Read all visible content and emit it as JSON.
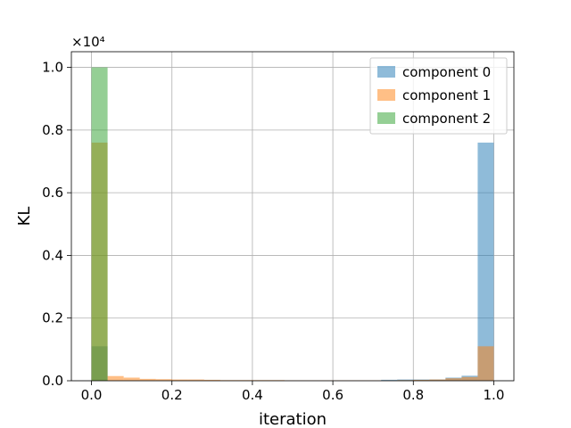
{
  "chart_data": {
    "type": "histogram",
    "title": "",
    "xlabel": "iteration",
    "ylabel": "KL",
    "xlim": [
      -0.05,
      1.05
    ],
    "ylim": [
      0,
      1.05
    ],
    "y_offset_text": "×10⁴",
    "bins": 25,
    "bin_range": [
      0.0,
      1.0
    ],
    "x_ticks": [
      0.0,
      0.2,
      0.4,
      0.6,
      0.8,
      1.0
    ],
    "x_tick_labels": [
      "0.0",
      "0.2",
      "0.4",
      "0.6",
      "0.8",
      "1.0"
    ],
    "y_ticks": [
      0.0,
      0.2,
      0.4,
      0.6,
      0.8,
      1.0
    ],
    "y_tick_labels": [
      "0.0",
      "0.2",
      "0.4",
      "0.6",
      "0.8",
      "1.0"
    ],
    "grid": true,
    "legend_position": "top-right",
    "alpha": 0.5,
    "series": [
      {
        "name": "component 0",
        "color": "#1f77b4",
        "counts": [
          0.11,
          0.0,
          0.0,
          0.0,
          0.0,
          0.0,
          0.0,
          0.0,
          0.0,
          0.0,
          0.0,
          0.0,
          0.0,
          0.0,
          0.0,
          0.0,
          0.0,
          0.0,
          0.003,
          0.004,
          0.004,
          0.004,
          0.01,
          0.016,
          0.76
        ]
      },
      {
        "name": "component 1",
        "color": "#ff7f0e",
        "counts": [
          0.76,
          0.015,
          0.01,
          0.006,
          0.005,
          0.004,
          0.004,
          0.003,
          0.002,
          0.002,
          0.002,
          0.002,
          0.001,
          0.001,
          0.001,
          0.001,
          0.001,
          0.001,
          0.001,
          0.002,
          0.003,
          0.004,
          0.008,
          0.012,
          0.11
        ]
      },
      {
        "name": "component 2",
        "color": "#2ca02c",
        "counts": [
          1.0,
          0.0,
          0.0,
          0.0,
          0.0,
          0.0,
          0.0,
          0.0,
          0.0,
          0.0,
          0.0,
          0.0,
          0.0,
          0.0,
          0.0,
          0.0,
          0.0,
          0.0,
          0.0,
          0.0,
          0.0,
          0.0,
          0.0,
          0.0,
          0.0
        ]
      }
    ]
  }
}
